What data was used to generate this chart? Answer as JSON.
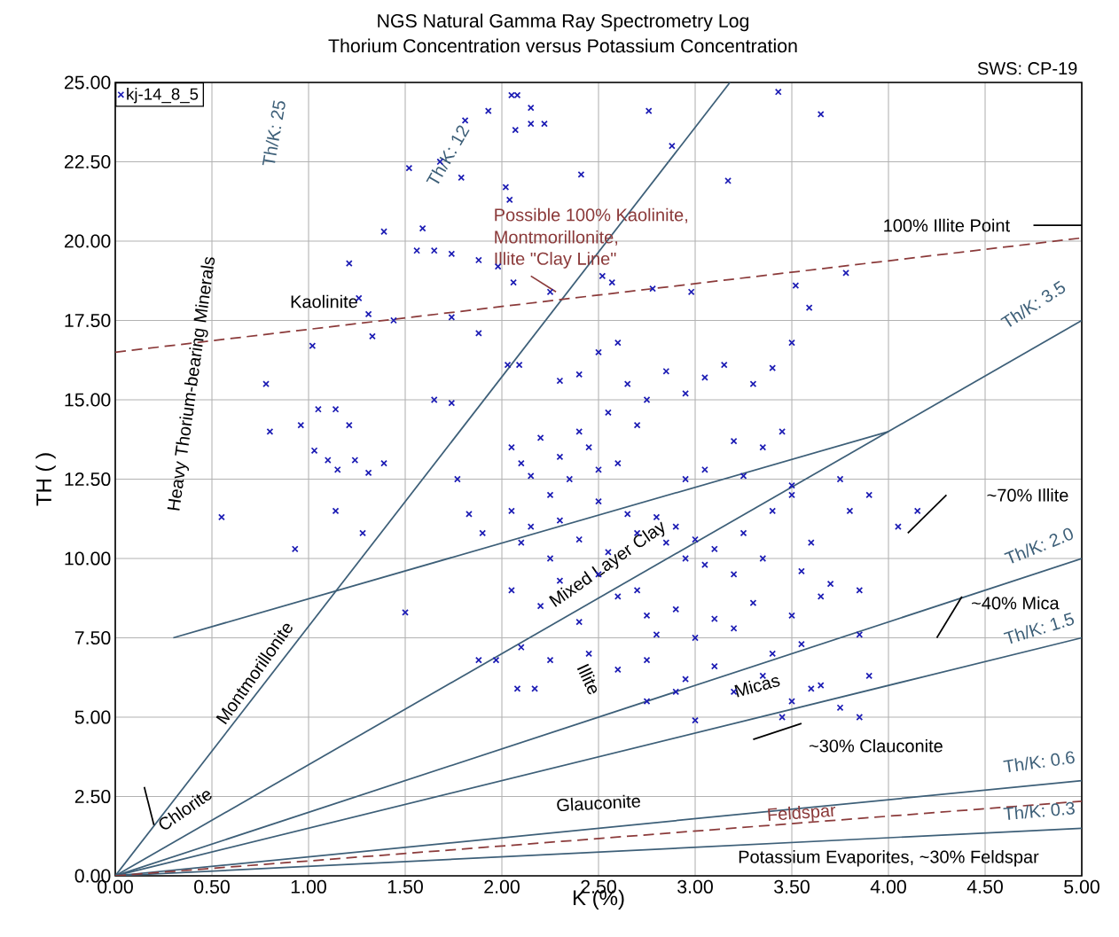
{
  "chart_data": {
    "type": "scatter",
    "title": "NGS Natural Gamma Ray Spectrometry Log",
    "subtitle": "Thorium Concentration versus Potassium Concentration",
    "xlabel": "K (%)",
    "ylabel": "TH ( )",
    "xlim": [
      0,
      5
    ],
    "ylim": [
      0,
      25
    ],
    "xticks": [
      {
        "value": 0,
        "label": "0.00"
      },
      {
        "value": 0.5,
        "label": "0.50"
      },
      {
        "value": 1,
        "label": "1.00"
      },
      {
        "value": 1.5,
        "label": "1.50"
      },
      {
        "value": 2,
        "label": "2.00"
      },
      {
        "value": 2.5,
        "label": "2.50"
      },
      {
        "value": 3,
        "label": "3.00"
      },
      {
        "value": 3.5,
        "label": "3.50"
      },
      {
        "value": 4,
        "label": "4.00"
      },
      {
        "value": 4.5,
        "label": "4.50"
      },
      {
        "value": 5,
        "label": "5.00"
      }
    ],
    "yticks": [
      {
        "value": 0,
        "label": "0.00"
      },
      {
        "value": 2.5,
        "label": "2.50"
      },
      {
        "value": 5,
        "label": "5.00"
      },
      {
        "value": 7.5,
        "label": "7.50"
      },
      {
        "value": 10,
        "label": "10.00"
      },
      {
        "value": 12.5,
        "label": "12.50"
      },
      {
        "value": 15,
        "label": "15.00"
      },
      {
        "value": 17.5,
        "label": "17.50"
      },
      {
        "value": 20,
        "label": "20.00"
      },
      {
        "value": 22.5,
        "label": "22.50"
      },
      {
        "value": 25,
        "label": "25.00"
      }
    ],
    "grid": true,
    "legend": "top left",
    "series": [
      {
        "name": "kj-14_8_5",
        "marker": "cross",
        "color": "#1c1cb4",
        "x": [
          2.05,
          2.08,
          2.15,
          2.07,
          2.15,
          2.22,
          1.81,
          1.93,
          2.76,
          3.43,
          3.65,
          2.88,
          3.17,
          2.41,
          1.52,
          1.68,
          1.79,
          2.02,
          2.04,
          1.39,
          1.59,
          1.21,
          1.56,
          1.65,
          1.74,
          1.88,
          1.98,
          2.06,
          2.25,
          2.52,
          2.57,
          2.78,
          2.98,
          3.52,
          3.78,
          3.59,
          1.26,
          1.31,
          1.33,
          1.02,
          1.44,
          1.74,
          1.88,
          2.03,
          2.09,
          0.78,
          0.8,
          0.96,
          1.05,
          1.14,
          1.21,
          1.03,
          1.1,
          1.15,
          1.24,
          1.31,
          1.39,
          1.28,
          1.14,
          0.55,
          0.93,
          1.65,
          1.74,
          1.77,
          1.83,
          1.9,
          1.5,
          1.88,
          1.97,
          2.08,
          2.17,
          2.05,
          2.1,
          2.15,
          2.2,
          2.25,
          2.3,
          2.35,
          2.4,
          2.45,
          2.5,
          2.55,
          2.6,
          2.65,
          2.7,
          2.3,
          2.4,
          2.5,
          2.6,
          2.75,
          2.85,
          2.95,
          3.05,
          3.15,
          3.3,
          3.4,
          3.5,
          2.05,
          2.1,
          2.15,
          2.25,
          2.3,
          2.4,
          2.5,
          2.55,
          2.65,
          2.7,
          2.8,
          2.85,
          2.9,
          2.95,
          3.0,
          3.05,
          3.1,
          3.2,
          3.25,
          3.35,
          3.4,
          3.5,
          3.55,
          3.6,
          3.65,
          3.7,
          3.75,
          3.8,
          3.85,
          2.05,
          2.2,
          2.3,
          2.4,
          2.5,
          2.6,
          2.7,
          2.75,
          2.8,
          2.9,
          3.0,
          3.1,
          3.2,
          3.3,
          3.4,
          3.5,
          3.55,
          2.1,
          2.25,
          2.45,
          2.6,
          2.75,
          2.95,
          3.1,
          3.2,
          3.35,
          3.5,
          3.6,
          3.75,
          3.85,
          2.75,
          2.9,
          3.0,
          3.45,
          3.65,
          3.9,
          3.85,
          3.9,
          4.05,
          4.15,
          3.35,
          3.45,
          3.2,
          3.05,
          3.5,
          2.95,
          3.25
        ],
        "values": [
          24.6,
          24.6,
          24.2,
          23.5,
          23.7,
          23.7,
          23.8,
          24.1,
          24.1,
          24.7,
          24.0,
          23.0,
          21.9,
          22.1,
          22.3,
          22.5,
          22.0,
          21.7,
          21.3,
          20.3,
          20.4,
          19.3,
          19.7,
          19.7,
          19.6,
          19.4,
          19.2,
          18.7,
          18.4,
          18.9,
          18.7,
          18.5,
          18.4,
          18.6,
          19.0,
          17.9,
          18.2,
          17.7,
          17.0,
          16.7,
          17.5,
          17.6,
          17.1,
          16.1,
          16.1,
          15.5,
          14.0,
          14.2,
          14.7,
          14.7,
          14.2,
          13.4,
          13.1,
          12.8,
          13.1,
          12.7,
          13.0,
          10.8,
          11.5,
          11.3,
          10.3,
          15.0,
          14.9,
          12.5,
          11.4,
          10.8,
          8.3,
          6.8,
          6.8,
          5.9,
          5.9,
          13.5,
          13.0,
          12.6,
          13.8,
          12.0,
          13.2,
          12.5,
          14.0,
          13.5,
          12.8,
          14.6,
          13.0,
          15.5,
          14.2,
          15.6,
          15.8,
          16.5,
          16.8,
          15.0,
          15.9,
          15.2,
          15.7,
          16.1,
          15.5,
          16.0,
          16.8,
          11.5,
          10.5,
          11.0,
          10.0,
          11.2,
          10.6,
          11.8,
          10.2,
          11.4,
          10.8,
          11.3,
          10.5,
          11.0,
          10.0,
          10.6,
          9.8,
          10.3,
          9.5,
          10.8,
          10.0,
          11.5,
          12.0,
          9.6,
          10.5,
          8.8,
          9.2,
          12.5,
          11.5,
          9.0,
          9.0,
          8.5,
          9.3,
          8.0,
          9.5,
          8.8,
          9.0,
          8.2,
          7.6,
          8.4,
          7.5,
          8.1,
          7.8,
          8.6,
          7.0,
          8.2,
          7.3,
          7.2,
          6.8,
          7.0,
          6.5,
          6.8,
          6.2,
          6.6,
          5.8,
          6.3,
          5.5,
          5.9,
          5.3,
          5.0,
          5.5,
          5.8,
          4.9,
          5.0,
          6.0,
          6.3,
          7.6,
          12.0,
          11.0,
          11.5,
          13.5,
          14.0,
          13.7,
          12.8,
          12.3,
          12.5,
          12.6
        ]
      },
      {
        "type": "line",
        "color": "#3d5f78",
        "x": [
          0,
          3.18
        ],
        "values": [
          0,
          25
        ]
      },
      {
        "type": "line",
        "color": "#3d5f78",
        "x": [
          0,
          5
        ],
        "values": [
          0,
          17.5
        ]
      },
      {
        "type": "line",
        "color": "#3d5f78",
        "x": [
          0,
          5
        ],
        "values": [
          0,
          10
        ]
      },
      {
        "type": "line",
        "color": "#3d5f78",
        "x": [
          0,
          5
        ],
        "values": [
          0,
          7.5
        ]
      },
      {
        "type": "line",
        "color": "#3d5f78",
        "x": [
          0,
          5
        ],
        "values": [
          0,
          3
        ]
      },
      {
        "type": "line",
        "color": "#3d5f78",
        "x": [
          0,
          5
        ],
        "values": [
          0,
          1.5
        ]
      },
      {
        "type": "line",
        "color": "#3d5f78",
        "x": [
          0.3,
          4.0
        ],
        "values": [
          7.5,
          14.0
        ]
      },
      {
        "type": "line",
        "color": "#8b3a3a",
        "line_style": "dashed",
        "x": [
          0,
          5
        ],
        "values": [
          16.5,
          20.1
        ]
      },
      {
        "type": "line",
        "color": "#8b3a3a",
        "line_style": "dashed",
        "x": [
          0,
          5
        ],
        "values": [
          0,
          2.35
        ]
      },
      {
        "type": "line",
        "color": "#000000",
        "x": [
          4.75,
          5
        ],
        "values": [
          20.5,
          20.5
        ]
      },
      {
        "type": "line",
        "color": "#8b3a3a",
        "x": [
          2.15,
          2.28
        ],
        "values": [
          18.9,
          18.4
        ]
      },
      {
        "type": "line",
        "color": "#000000",
        "x": [
          4.1,
          4.3
        ],
        "values": [
          10.8,
          12.0
        ]
      },
      {
        "type": "line",
        "color": "#000000",
        "x": [
          4.25,
          4.38
        ],
        "values": [
          7.5,
          8.8
        ]
      },
      {
        "type": "line",
        "color": "#000000",
        "x": [
          3.3,
          3.55
        ],
        "values": [
          4.3,
          4.8
        ]
      },
      {
        "type": "line",
        "color": "#000000",
        "x": [
          0.15,
          0.2
        ],
        "values": [
          2.8,
          1.6
        ]
      }
    ],
    "annotations": [
      "Th/K: 25",
      "Th/K: 12",
      "Possible 100% Kaolinite,",
      "Montmorillonite,",
      "Illite \"Clay Line\"",
      "100% Illite Point",
      "Th/K: 3.5",
      "Heavy Thorium-bearing Minerals",
      "Kaolinite",
      "~70% Illite",
      "Th/K: 2.0",
      "Mixed Layer Clay",
      "~40% Mica",
      "Th/K: 1.5",
      "Montmorillonite",
      "Illite",
      "Micas",
      "~30% Clauconite",
      "Th/K: 0.6",
      "Chlorite",
      "Glauconite",
      "Feldspar",
      "Th/K: 0.3",
      "Potassium Evaporites, ~30% Feldspar",
      "SWS: CP-19"
    ]
  }
}
